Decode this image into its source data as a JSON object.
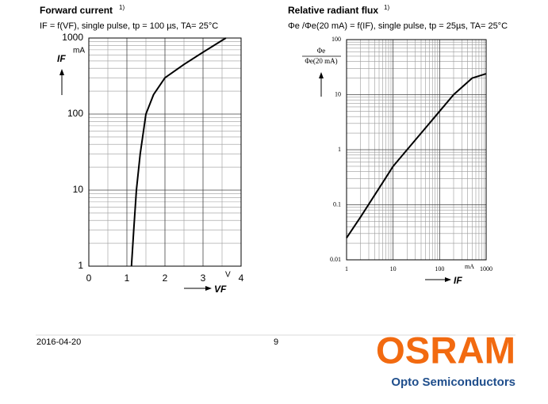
{
  "chart_data": [
    {
      "type": "line",
      "title": "Forward current",
      "footnote": "1)",
      "subtitle": "IF = f(VF), single pulse, tp = 100 µs, TA= 25°C",
      "xlabel": "VF",
      "xunit": "V",
      "ylabel": "IF",
      "yunit": "mA",
      "x": [
        1.12,
        1.18,
        1.25,
        1.35,
        1.5,
        1.7,
        2.0,
        2.5,
        3.0,
        3.6
      ],
      "values": [
        1,
        3,
        10,
        30,
        100,
        180,
        300,
        450,
        650,
        1000
      ],
      "color": "#000000",
      "xlim": [
        0,
        4
      ],
      "xticks": [
        0,
        1,
        2,
        3,
        4
      ],
      "xminorticks": [
        0.5,
        1.5,
        2.5,
        3.5
      ],
      "ylim": [
        1,
        1000
      ],
      "ylog": true,
      "yticks": [
        1,
        10,
        100,
        1000
      ],
      "yminorticks": [
        2,
        3,
        4,
        5,
        6,
        7,
        8,
        9,
        20,
        30,
        40,
        50,
        60,
        70,
        80,
        90,
        200,
        300,
        400,
        500,
        600,
        700,
        800,
        900
      ],
      "grid": true
    },
    {
      "type": "line",
      "title": "Relative radiant flux",
      "footnote": "1)",
      "subtitle": "Φe /Φe(20 mA) = f(IF), single pulse, tp = 25µs, TA= 25°C",
      "xlabel": "IF",
      "xunit": "mA",
      "ylabel": {
        "numerator": "Φe",
        "denominator": "Φe(20 mA)"
      },
      "x": [
        1,
        2,
        5,
        10,
        20,
        50,
        100,
        200,
        500,
        1000
      ],
      "values": [
        0.025,
        0.06,
        0.2,
        0.5,
        1,
        2.5,
        5,
        10,
        20,
        24
      ],
      "color": "#000000",
      "xlim": [
        1,
        1000
      ],
      "xlog": true,
      "xticks": [
        1,
        10,
        100,
        1000
      ],
      "xminorticks": [
        2,
        3,
        4,
        5,
        6,
        7,
        8,
        9,
        20,
        30,
        40,
        50,
        60,
        70,
        80,
        90,
        200,
        300,
        400,
        500,
        600,
        700,
        800,
        900
      ],
      "ylim": [
        0.01,
        100
      ],
      "ylog": true,
      "yticks": [
        0.01,
        0.1,
        1,
        10,
        100
      ],
      "yminorticks": [
        0.02,
        0.03,
        0.04,
        0.05,
        0.06,
        0.07,
        0.08,
        0.09,
        0.2,
        0.3,
        0.4,
        0.5,
        0.6,
        0.7,
        0.8,
        0.9,
        2,
        3,
        4,
        5,
        6,
        7,
        8,
        9,
        20,
        30,
        40,
        50,
        60,
        70,
        80,
        90
      ],
      "grid": true
    }
  ],
  "footer": {
    "date": "2016-04-20",
    "page": "9",
    "logo": "OSRAM",
    "tagline": "Opto Semiconductors"
  }
}
